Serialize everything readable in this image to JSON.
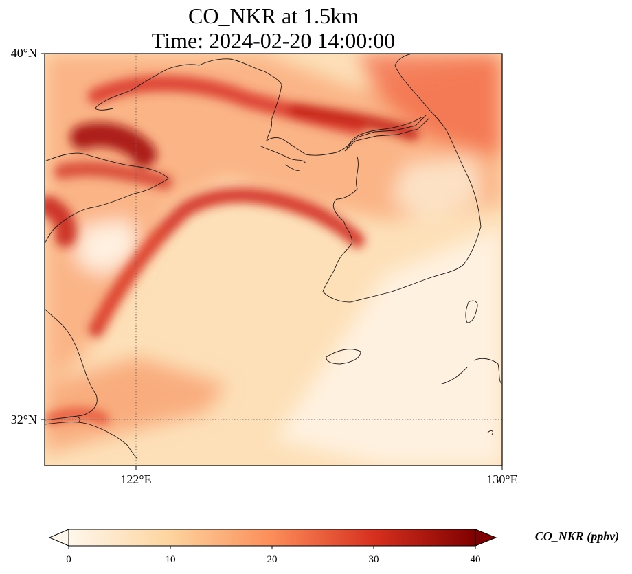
{
  "title_line1": "CO_NKR at 1.5km",
  "title_line2": "Time: 2024-02-20 14:00:00",
  "map": {
    "lat_ticks": [
      "40°N",
      "32°N"
    ],
    "lon_ticks": [
      "122°E",
      "130°E"
    ],
    "lat_range": [
      31,
      40
    ],
    "lon_range": [
      120,
      130
    ],
    "gridlines": {
      "lat": [
        32
      ],
      "lon": [
        122
      ],
      "style": "dotted"
    }
  },
  "colorbar": {
    "label": "CO_NKR (ppbv)",
    "colormap": "OrRd",
    "ticks": [
      "0",
      "10",
      "20",
      "30",
      "40"
    ],
    "range": [
      0,
      40
    ],
    "extend": "both",
    "colors": [
      "#fff7ec",
      "#fdd49e",
      "#fc8d59",
      "#d7301f",
      "#7f0000"
    ]
  }
}
